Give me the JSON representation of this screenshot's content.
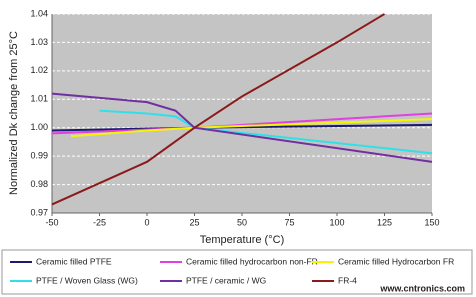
{
  "chart_data": {
    "type": "line",
    "y_label": "Normalized Dk change from 25°C",
    "x_label": "Temperature (°C)",
    "xlim": [
      -50,
      150
    ],
    "xticks": [
      -50,
      -25,
      0,
      25,
      50,
      75,
      100,
      125,
      150
    ],
    "ylim": [
      0.97,
      1.04
    ],
    "yticks": [
      0.97,
      0.98,
      0.99,
      {
        "value": 1,
        "label": "1.00"
      },
      1.01,
      1.02,
      1.03,
      1.04
    ],
    "grid": true,
    "legend": "bottom",
    "watermark": "www.cntronics.com",
    "series": [
      {
        "name": "Ceramic filled PTFE",
        "color": "#1a1a6e",
        "x": [
          -50,
          25,
          150
        ],
        "values": [
          0.999,
          1.0,
          1.001
        ]
      },
      {
        "name": "Ceramic filled hydrocarbon non-FR",
        "color": "#e040e0",
        "x": [
          -50,
          25,
          150
        ],
        "values": [
          0.998,
          1.0,
          1.005
        ]
      },
      {
        "name": "Ceramic filled Hydrocarbon FR",
        "color": "#f5f500",
        "x": [
          -40,
          0,
          25,
          150
        ],
        "values": [
          0.997,
          0.999,
          1.0,
          1.003
        ]
      },
      {
        "name": "PTFE / Woven Glass (WG)",
        "color": "#30e0e8",
        "x": [
          -25,
          0,
          15,
          25,
          150
        ],
        "values": [
          1.006,
          1.005,
          1.004,
          1.0,
          0.991
        ]
      },
      {
        "name": "PTFE / ceramic / WG",
        "color": "#7030a0",
        "x": [
          -50,
          0,
          15,
          25,
          150
        ],
        "values": [
          1.012,
          1.009,
          1.006,
          1.0,
          0.988
        ]
      },
      {
        "name": "FR-4",
        "color": "#8b1a1a",
        "x": [
          -50,
          0,
          25,
          50,
          100,
          125
        ],
        "values": [
          0.973,
          0.988,
          1.0,
          1.011,
          1.03,
          1.04
        ]
      }
    ]
  }
}
